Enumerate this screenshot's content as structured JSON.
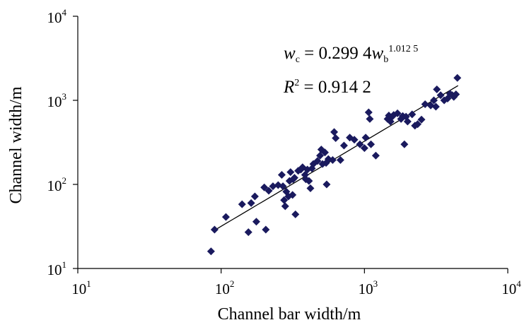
{
  "chart_data": {
    "type": "scatter",
    "xlabel": "Channel bar width/m",
    "ylabel": "Channel width/m",
    "x_scale": "log",
    "y_scale": "log",
    "xlim": [
      10,
      10000
    ],
    "ylim": [
      10,
      10000
    ],
    "x_ticks": [
      {
        "base": "10",
        "exp": "1",
        "value": 10
      },
      {
        "base": "10",
        "exp": "2",
        "value": 100
      },
      {
        "base": "10",
        "exp": "3",
        "value": 1000
      },
      {
        "base": "10",
        "exp": "4",
        "value": 10000
      }
    ],
    "y_ticks": [
      {
        "base": "10",
        "exp": "1",
        "value": 10
      },
      {
        "base": "10",
        "exp": "2",
        "value": 100
      },
      {
        "base": "10",
        "exp": "3",
        "value": 1000
      },
      {
        "base": "10",
        "exp": "4",
        "value": 10000
      }
    ],
    "grid": false,
    "legend": "none",
    "marker": "diamond",
    "marker_color": "#1a1a5e",
    "trendline_color": "#000000",
    "equation": {
      "lhs_var": "w",
      "lhs_sub": "c",
      "eq_text": " = 0.299 4",
      "rhs_var": "w",
      "rhs_sub": "b",
      "exponent_text": "1.012 5",
      "r2_var": "R",
      "r2_sup": "2",
      "r2_value": " = 0.914 2"
    },
    "fit": {
      "a": 0.2994,
      "b": 1.0125,
      "x_range": [
        90,
        4500
      ]
    },
    "points": [
      [
        85,
        16
      ],
      [
        90,
        29
      ],
      [
        108,
        41
      ],
      [
        140,
        58
      ],
      [
        155,
        27
      ],
      [
        162,
        60
      ],
      [
        172,
        72
      ],
      [
        176,
        36
      ],
      [
        200,
        92
      ],
      [
        205,
        29
      ],
      [
        215,
        84
      ],
      [
        230,
        95
      ],
      [
        250,
        98
      ],
      [
        265,
        130
      ],
      [
        270,
        95
      ],
      [
        275,
        65
      ],
      [
        280,
        55
      ],
      [
        285,
        82
      ],
      [
        295,
        72
      ],
      [
        300,
        110
      ],
      [
        305,
        140
      ],
      [
        315,
        75
      ],
      [
        318,
        115
      ],
      [
        325,
        120
      ],
      [
        330,
        44
      ],
      [
        345,
        145
      ],
      [
        360,
        150
      ],
      [
        370,
        160
      ],
      [
        385,
        130
      ],
      [
        390,
        115
      ],
      [
        400,
        150
      ],
      [
        410,
        110
      ],
      [
        420,
        90
      ],
      [
        430,
        155
      ],
      [
        440,
        175
      ],
      [
        470,
        190
      ],
      [
        490,
        220
      ],
      [
        500,
        260
      ],
      [
        510,
        175
      ],
      [
        530,
        240
      ],
      [
        540,
        180
      ],
      [
        545,
        100
      ],
      [
        560,
        200
      ],
      [
        600,
        195
      ],
      [
        615,
        420
      ],
      [
        630,
        355
      ],
      [
        680,
        195
      ],
      [
        720,
        290
      ],
      [
        790,
        360
      ],
      [
        850,
        340
      ],
      [
        930,
        300
      ],
      [
        1000,
        270
      ],
      [
        1020,
        360
      ],
      [
        1070,
        720
      ],
      [
        1090,
        600
      ],
      [
        1110,
        300
      ],
      [
        1200,
        220
      ],
      [
        1450,
        600
      ],
      [
        1480,
        660
      ],
      [
        1520,
        560
      ],
      [
        1560,
        640
      ],
      [
        1600,
        670
      ],
      [
        1700,
        700
      ],
      [
        1800,
        600
      ],
      [
        1850,
        650
      ],
      [
        1900,
        300
      ],
      [
        1950,
        640
      ],
      [
        2000,
        560
      ],
      [
        2150,
        680
      ],
      [
        2250,
        500
      ],
      [
        2350,
        520
      ],
      [
        2500,
        590
      ],
      [
        2650,
        900
      ],
      [
        2900,
        870
      ],
      [
        3050,
        1000
      ],
      [
        3150,
        840
      ],
      [
        3200,
        1350
      ],
      [
        3400,
        1150
      ],
      [
        3600,
        1000
      ],
      [
        3800,
        1050
      ],
      [
        3950,
        1200
      ],
      [
        4100,
        1150
      ],
      [
        4200,
        1100
      ],
      [
        4350,
        1180
      ],
      [
        4450,
        1850
      ]
    ]
  }
}
